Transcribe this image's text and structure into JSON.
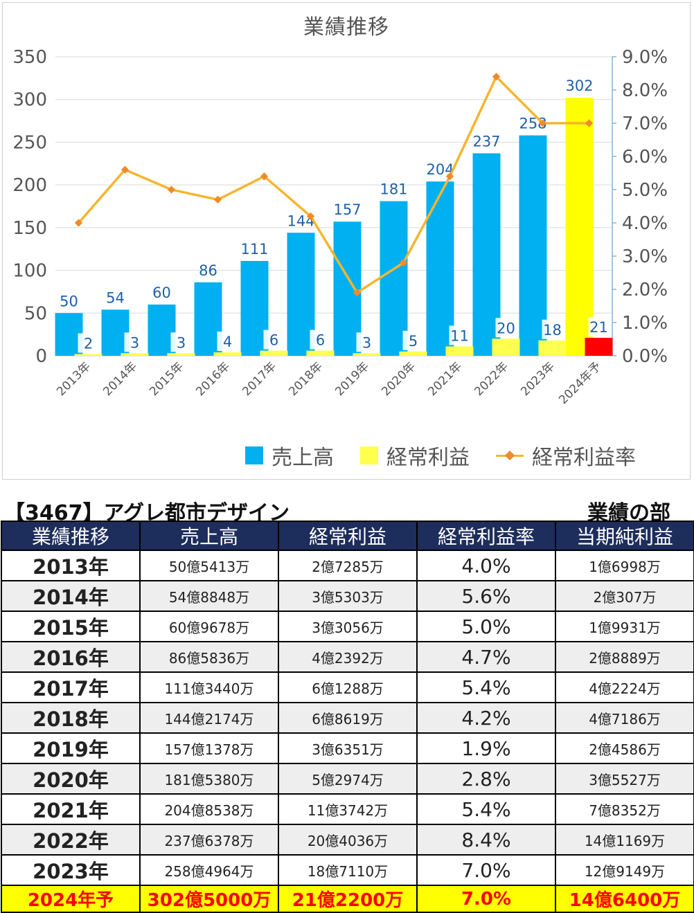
{
  "chart_data": {
    "type": "bar",
    "title": "業績推移",
    "categories": [
      "2013年",
      "2014年",
      "2015年",
      "2016年",
      "2017年",
      "2018年",
      "2019年",
      "2020年",
      "2021年",
      "2022年",
      "2023年",
      "2024年予"
    ],
    "series": [
      {
        "name": "売上高",
        "type": "bar",
        "axis": "left",
        "color": "#00b0f0",
        "values": [
          50,
          54,
          60,
          86,
          111,
          144,
          157,
          181,
          204,
          237,
          258,
          302
        ],
        "highlight_last_color": "#ffff00"
      },
      {
        "name": "経常利益",
        "type": "bar",
        "axis": "left",
        "color": "#ffff4d",
        "values": [
          2,
          3,
          3,
          4,
          6,
          6,
          3,
          5,
          11,
          20,
          18,
          21
        ],
        "highlight_last_color": "#ff0000"
      },
      {
        "name": "経常利益率",
        "type": "line",
        "axis": "right",
        "color": "#f5b52e",
        "marker_color": "#f08a2c",
        "values": [
          4.0,
          5.6,
          5.0,
          4.7,
          5.4,
          4.2,
          1.9,
          2.8,
          5.4,
          8.4,
          7.0,
          7.0
        ]
      }
    ],
    "y_left": {
      "min": 0,
      "max": 350,
      "step": 50,
      "ticks": [
        "0",
        "50",
        "100",
        "150",
        "200",
        "250",
        "300",
        "350"
      ]
    },
    "y_right": {
      "min": 0,
      "max": 9,
      "step": 1,
      "ticks": [
        "0.0%",
        "1.0%",
        "2.0%",
        "3.0%",
        "4.0%",
        "5.0%",
        "6.0%",
        "7.0%",
        "8.0%",
        "9.0%"
      ]
    },
    "grid": true,
    "legend_position": "bottom"
  },
  "legend": {
    "sales": "売上高",
    "ordinary_profit": "経常利益",
    "margin": "経常利益率"
  },
  "header": {
    "company": "【3467】アグレ都市デザイン",
    "section": "業績の部"
  },
  "table": {
    "columns": [
      "業績推移",
      "売上高",
      "経常利益",
      "経常利益率",
      "当期純利益"
    ],
    "rows": [
      {
        "year": "2013年",
        "sales": "50億5413万",
        "op": "2億7285万",
        "rate": "4.0%",
        "net": "1億6998万"
      },
      {
        "year": "2014年",
        "sales": "54億8848万",
        "op": "3億5303万",
        "rate": "5.6%",
        "net": "2億307万"
      },
      {
        "year": "2015年",
        "sales": "60億9678万",
        "op": "3億3056万",
        "rate": "5.0%",
        "net": "1億9931万"
      },
      {
        "year": "2016年",
        "sales": "86億5836万",
        "op": "4億2392万",
        "rate": "4.7%",
        "net": "2億8889万"
      },
      {
        "year": "2017年",
        "sales": "111億3440万",
        "op": "6億1288万",
        "rate": "5.4%",
        "net": "4億2224万"
      },
      {
        "year": "2018年",
        "sales": "144億2174万",
        "op": "6億8619万",
        "rate": "4.2%",
        "net": "4億7186万"
      },
      {
        "year": "2019年",
        "sales": "157億1378万",
        "op": "3億6351万",
        "rate": "1.9%",
        "net": "2億4586万"
      },
      {
        "year": "2020年",
        "sales": "181億5380万",
        "op": "5億2974万",
        "rate": "2.8%",
        "net": "3億5527万"
      },
      {
        "year": "2021年",
        "sales": "204億8538万",
        "op": "11億3742万",
        "rate": "5.4%",
        "net": "7億8352万"
      },
      {
        "year": "2022年",
        "sales": "237億6378万",
        "op": "20億4036万",
        "rate": "8.4%",
        "net": "14億1169万"
      },
      {
        "year": "2023年",
        "sales": "258億4964万",
        "op": "18億7110万",
        "rate": "7.0%",
        "net": "12億9149万"
      },
      {
        "year": "2024年予",
        "sales": "302億5000万",
        "op": "21億2200万",
        "rate": "7.0%",
        "net": "14億6400万"
      }
    ]
  }
}
